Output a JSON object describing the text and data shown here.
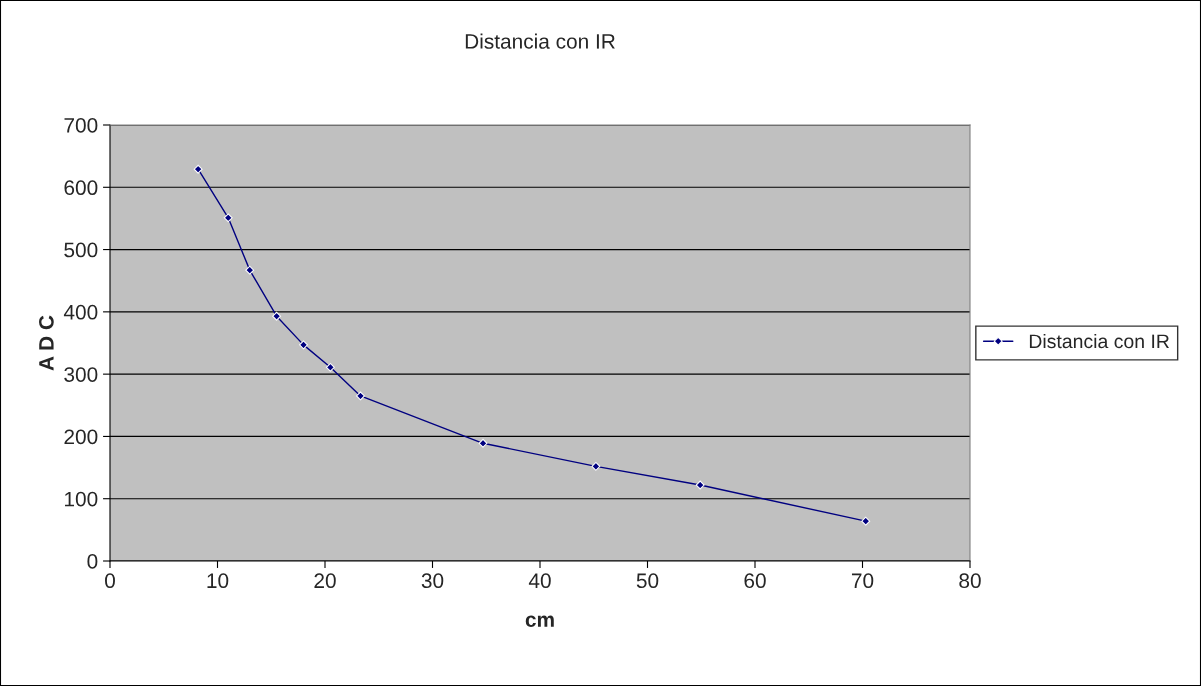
{
  "chart_data": {
    "type": "line",
    "title": "Distancia con IR",
    "xlabel": "cm",
    "ylabel": "A D C",
    "series": [
      {
        "name": "Distancia con IR",
        "color": "#000080",
        "x": [
          8.2,
          11.0,
          13.0,
          15.5,
          18.0,
          20.5,
          23.3,
          34.7,
          45.2,
          54.9,
          70.3
        ],
        "values": [
          629,
          551,
          467,
          393,
          347,
          311,
          265,
          189,
          152,
          122,
          64
        ]
      }
    ],
    "xlim": [
      0,
      80
    ],
    "xticks": [
      0,
      10,
      20,
      30,
      40,
      50,
      60,
      70,
      80
    ],
    "ylim": [
      0,
      700
    ],
    "yticks": [
      0,
      100,
      200,
      300,
      400,
      500,
      600,
      700
    ],
    "grid": "y",
    "legend": "right",
    "marker": "diamond",
    "line_style": "solid"
  }
}
